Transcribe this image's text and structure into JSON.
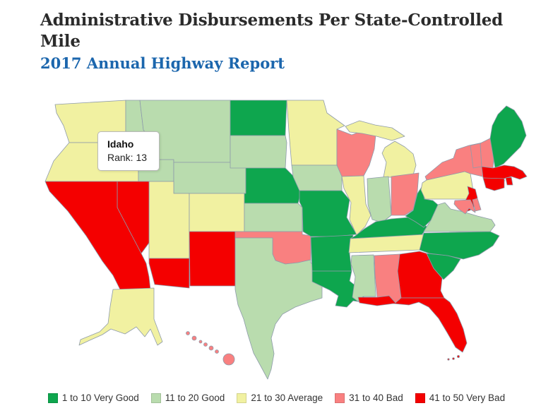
{
  "page": {
    "title": "Administrative Disbursements Per State-Controlled Mile",
    "subtitle": "2017 Annual Highway Report"
  },
  "tooltip": {
    "state": "Idaho",
    "rank": "Rank: 13"
  },
  "chart_data": {
    "type": "choropleth",
    "title": "Administrative Disbursements Per State-Controlled Mile",
    "subtitle": "2017 Annual Highway Report",
    "legend_position": "bottom",
    "highlighted_state": {
      "name": "Idaho",
      "rank": 13
    },
    "bins": [
      {
        "key": "very_good",
        "label": "1 to 10 Very Good",
        "color": "#0ea64e"
      },
      {
        "key": "good",
        "label": "11 to 20 Good",
        "color": "#b9dcae"
      },
      {
        "key": "average",
        "label": "21 to 30 Average",
        "color": "#f1f1a1"
      },
      {
        "key": "bad",
        "label": "31 to 40 Bad",
        "color": "#f98080"
      },
      {
        "key": "very_bad",
        "label": "41 to 50 Very Bad",
        "color": "#f40000"
      }
    ],
    "states": {
      "WA": "average",
      "OR": "average",
      "CA": "very_bad",
      "NV": "very_bad",
      "ID": "good",
      "MT": "good",
      "WY": "good",
      "UT": "average",
      "CO": "average",
      "AZ": "very_bad",
      "NM": "very_bad",
      "ND": "very_good",
      "SD": "good",
      "NE": "very_good",
      "KS": "good",
      "OK": "bad",
      "TX": "good",
      "MN": "average",
      "IA": "good",
      "MO": "very_good",
      "AR": "very_good",
      "LA": "very_good",
      "WI": "bad",
      "IL": "average",
      "MS": "good",
      "MI": "average",
      "IN": "good",
      "OH": "bad",
      "KY": "very_good",
      "TN": "average",
      "AL": "bad",
      "GA": "very_bad",
      "FL": "very_bad",
      "SC": "very_good",
      "NC": "very_good",
      "VA": "good",
      "WV": "very_good",
      "PA": "average",
      "NY": "bad",
      "VT": "bad",
      "NH": "bad",
      "ME": "very_good",
      "MA": "very_bad",
      "RI": "very_bad",
      "CT": "very_bad",
      "NJ": "very_bad",
      "DE": "bad",
      "MD": "bad",
      "AK": "average",
      "HI": "bad"
    }
  },
  "colors": {
    "title": "#2b2b2b",
    "subtitle": "#1b66ad",
    "state_border": "#8e9bab"
  }
}
